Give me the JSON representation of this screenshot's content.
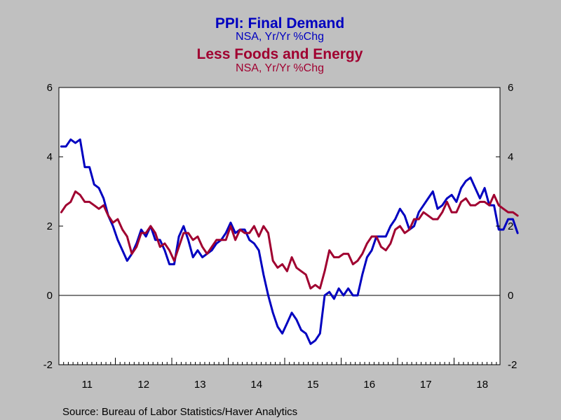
{
  "chart_data": {
    "type": "line",
    "titles": [
      {
        "text": "PPI: Final Demand",
        "color": "#0000C0"
      },
      {
        "text": "NSA, Yr/Yr %Chg",
        "color": "#0000C0"
      },
      {
        "text": "Less Foods and Energy",
        "color": "#A00030"
      },
      {
        "text": "NSA, Yr/Yr %Chg",
        "color": "#A00030"
      }
    ],
    "source": "Source:  Bureau of Labor Statistics/Haver Analytics",
    "background_color": "#C0C0C0",
    "plot_background": "#FFFFFF",
    "x_start_year": 2011,
    "x_tick_labels": [
      "11",
      "12",
      "13",
      "14",
      "15",
      "16",
      "17",
      "18"
    ],
    "ylim": [
      -2,
      6
    ],
    "y_ticks": [
      "-2",
      "0",
      "2",
      "4",
      "6"
    ],
    "zero_line": true,
    "grid": false,
    "series": [
      {
        "color": "#0000C0",
        "values": [
          4.3,
          4.3,
          4.5,
          4.4,
          4.5,
          3.7,
          3.7,
          3.2,
          3.1,
          2.8,
          2.3,
          2.0,
          1.6,
          1.3,
          1.0,
          1.2,
          1.5,
          1.9,
          1.7,
          2.0,
          1.6,
          1.6,
          1.3,
          0.9,
          0.9,
          1.7,
          2.0,
          1.6,
          1.1,
          1.3,
          1.1,
          1.2,
          1.3,
          1.5,
          1.6,
          1.8,
          2.1,
          1.8,
          1.9,
          1.9,
          1.6,
          1.5,
          1.3,
          0.6,
          0.0,
          -0.5,
          -0.9,
          -1.1,
          -0.8,
          -0.5,
          -0.7,
          -1.0,
          -1.1,
          -1.4,
          -1.3,
          -1.1,
          0.0,
          0.1,
          -0.1,
          0.2,
          0.0,
          0.2,
          0.0,
          0.0,
          0.6,
          1.1,
          1.3,
          1.7,
          1.7,
          1.7,
          2.0,
          2.2,
          2.5,
          2.3,
          1.9,
          2.0,
          2.4,
          2.6,
          2.8,
          3.0,
          2.5,
          2.6,
          2.8,
          2.9,
          2.7,
          3.1,
          3.3,
          3.4,
          3.1,
          2.8,
          3.1,
          2.6,
          2.6,
          1.9,
          1.9,
          2.2,
          2.2,
          1.8
        ]
      },
      {
        "color": "#A00030",
        "values": [
          2.4,
          2.6,
          2.7,
          3.0,
          2.9,
          2.7,
          2.7,
          2.6,
          2.5,
          2.6,
          2.3,
          2.1,
          2.2,
          1.9,
          1.7,
          1.2,
          1.4,
          1.8,
          1.8,
          2.0,
          1.8,
          1.4,
          1.5,
          1.3,
          1.0,
          1.4,
          1.8,
          1.8,
          1.6,
          1.7,
          1.4,
          1.2,
          1.4,
          1.6,
          1.6,
          1.6,
          2.0,
          1.6,
          1.9,
          1.8,
          1.8,
          2.0,
          1.7,
          2.0,
          1.8,
          1.0,
          0.8,
          0.9,
          0.7,
          1.1,
          0.8,
          0.7,
          0.6,
          0.2,
          0.3,
          0.2,
          0.7,
          1.3,
          1.1,
          1.1,
          1.2,
          1.2,
          0.9,
          1.0,
          1.2,
          1.5,
          1.7,
          1.7,
          1.4,
          1.3,
          1.5,
          1.9,
          2.0,
          1.8,
          1.9,
          2.2,
          2.2,
          2.4,
          2.3,
          2.2,
          2.2,
          2.4,
          2.7,
          2.4,
          2.4,
          2.7,
          2.8,
          2.6,
          2.6,
          2.7,
          2.7,
          2.6,
          2.9,
          2.6,
          2.5,
          2.4,
          2.4,
          2.3
        ]
      }
    ]
  }
}
